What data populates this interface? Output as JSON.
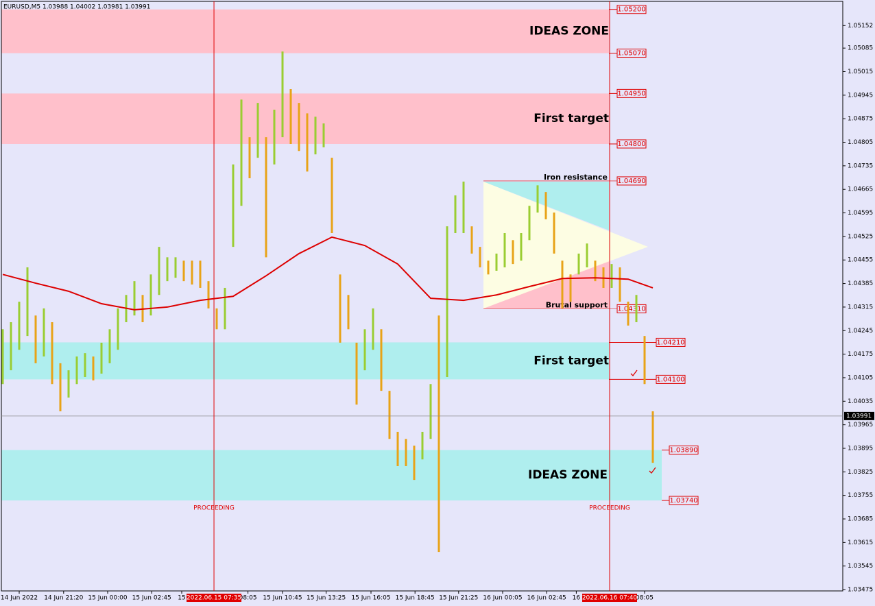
{
  "chart_data": {
    "type": "hilo",
    "header": "EURUSD,M5  1.03988 1.04002 1.03981 1.03991",
    "ylim": [
      1.03471,
      1.05228
    ],
    "yticks": [
      1.05152,
      1.05085,
      1.05015,
      1.04945,
      1.04875,
      1.04805,
      1.04735,
      1.04665,
      1.04595,
      1.04525,
      1.04455,
      1.04385,
      1.04315,
      1.04245,
      1.04175,
      1.04105,
      1.04035,
      1.03965,
      1.03895,
      1.03825,
      1.03755,
      1.03685,
      1.03615,
      1.03545,
      1.03475
    ],
    "xticks": [
      {
        "value": 2,
        "label": "14 Jun 2022"
      },
      {
        "value": 7.4,
        "label": "14 Jun 21:20"
      },
      {
        "value": 12.75,
        "label": "15 Jun 00:00"
      },
      {
        "value": 18.1,
        "label": "15 Jun 02:45"
      },
      {
        "value": 21.75,
        "label": "15"
      },
      {
        "value": 29.8,
        "label": "08:05"
      },
      {
        "value": 34,
        "label": "15 Jun 10:45"
      },
      {
        "value": 39.3,
        "label": "15 Jun 13:25"
      },
      {
        "value": 44.75,
        "label": "15 Jun 16:05"
      },
      {
        "value": 50.1,
        "label": "15 Jun 18:45"
      },
      {
        "value": 55.4,
        "label": "15 Jun 21:25"
      },
      {
        "value": 60.75,
        "label": "16 Jun 00:05"
      },
      {
        "value": 66.1,
        "label": "16 Jun 02:45"
      },
      {
        "value": 69.7,
        "label": "16"
      },
      {
        "value": 78,
        "label": "08:05"
      }
    ],
    "vlines": [
      {
        "value": 25.67,
        "label": "2022.06.15 07:35",
        "note": "PROCEEDING"
      },
      {
        "value": 73.75,
        "label": "2022.06.16 07:40",
        "note": "PROCEEDING"
      }
    ],
    "high": [
      1.04249,
      1.0427,
      1.04331,
      1.04433,
      1.0429,
      1.04311,
      1.0427,
      1.04148,
      1.04127,
      1.04168,
      1.04178,
      1.04168,
      1.04209,
      1.04249,
      1.04311,
      1.04351,
      1.04392,
      1.04351,
      1.04412,
      1.04494,
      1.04463,
      1.04463,
      1.04453,
      1.04453,
      1.04453,
      1.04392,
      1.04311,
      1.04372,
      1.04739,
      1.04932,
      1.0482,
      1.04922,
      1.0482,
      1.04902,
      1.05075,
      1.04963,
      1.04922,
      1.04891,
      1.04881,
      1.04861,
      1.04759,
      1.04412,
      1.04351,
      1.04209,
      1.04249,
      1.04311,
      1.04249,
      1.04066,
      1.03944,
      1.03923,
      1.03903,
      1.03944,
      1.04086,
      1.0429,
      1.04555,
      1.04647,
      1.04688,
      1.04555,
      1.04494,
      1.04453,
      1.04474,
      1.04535,
      1.04514,
      1.04535,
      1.04616,
      1.04677,
      1.04657,
      1.04596,
      1.04453,
      1.04412,
      1.04474,
      1.04504,
      1.04453,
      1.04433,
      1.04443,
      1.04433,
      1.04331,
      1.04351,
      1.04229,
      1.04005
    ],
    "low": [
      1.04086,
      1.04127,
      1.04188,
      1.04229,
      1.04148,
      1.04168,
      1.04086,
      1.04005,
      1.04046,
      1.04086,
      1.04107,
      1.04097,
      1.04117,
      1.04148,
      1.04188,
      1.0427,
      1.0429,
      1.0427,
      1.0429,
      1.04351,
      1.04392,
      1.04402,
      1.04392,
      1.04382,
      1.04372,
      1.04311,
      1.04249,
      1.04249,
      1.04494,
      1.04616,
      1.04698,
      1.04759,
      1.04463,
      1.04739,
      1.0482,
      1.048,
      1.04779,
      1.04718,
      1.04769,
      1.0479,
      1.04535,
      1.04209,
      1.04249,
      1.04025,
      1.04127,
      1.04188,
      1.04066,
      1.03923,
      1.03842,
      1.03842,
      1.03801,
      1.03862,
      1.03923,
      1.03587,
      1.04107,
      1.04535,
      1.04535,
      1.04474,
      1.04433,
      1.04412,
      1.04423,
      1.04433,
      1.04443,
      1.04453,
      1.04514,
      1.04596,
      1.04576,
      1.04474,
      1.04311,
      1.04331,
      1.04412,
      1.04433,
      1.04392,
      1.04372,
      1.04372,
      1.04331,
      1.0426,
      1.0427,
      1.04086,
      1.03852
    ],
    "up_color": "#9acd32",
    "down_color": "#e8a317",
    "ma": {
      "color": "#dd0000",
      "x": [
        0,
        4,
        8,
        12,
        16,
        20,
        24,
        28,
        32,
        36,
        40,
        44,
        48,
        52,
        56,
        60,
        64,
        68,
        72,
        76,
        79
      ],
      "values": [
        1.04412,
        1.04386,
        1.04362,
        1.04325,
        1.04307,
        1.04315,
        1.04335,
        1.04347,
        1.04408,
        1.04474,
        1.04523,
        1.04498,
        1.04443,
        1.04341,
        1.04335,
        1.04351,
        1.04376,
        1.044,
        1.04402,
        1.04398,
        1.04372
      ]
    },
    "zones": [
      {
        "label": "IDEAS ZONE",
        "color": "#ffc0cb",
        "top": {
          "value": 1.052,
          "label": "1.05200"
        },
        "bottom": {
          "value": 1.0507,
          "label": "1.05070"
        }
      },
      {
        "label": "First target",
        "color": "#ffc0cb",
        "top": {
          "value": 1.0495,
          "label": "1.04950"
        },
        "bottom": {
          "value": 1.048,
          "label": "1.04800"
        }
      },
      {
        "label": "First target",
        "color": "#afeeee",
        "top": {
          "value": 1.0421,
          "label": "1.04210"
        },
        "bottom": {
          "value": 1.041,
          "label": "1.04100"
        }
      },
      {
        "label": "IDEAS ZONE",
        "color": "#afeeee",
        "top": {
          "value": 1.0389,
          "label": "1.03890"
        },
        "bottom": {
          "value": 1.0374,
          "label": "1.03740"
        }
      }
    ],
    "levels": [
      {
        "label": "Iron resistance",
        "price": {
          "value": 1.0469,
          "label": "1.04690"
        }
      },
      {
        "label": "Brutal support",
        "price": {
          "value": 1.0431,
          "label": "1.04310"
        }
      }
    ],
    "last_price": 1.03991
  }
}
